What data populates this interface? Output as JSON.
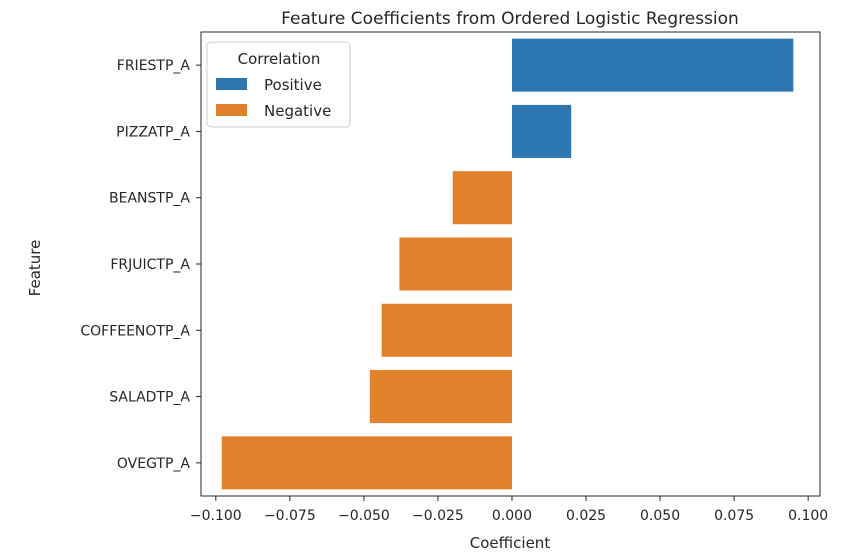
{
  "chart_data": {
    "type": "bar",
    "orientation": "horizontal",
    "title": "Feature Coefficients from Ordered Logistic Regression",
    "xlabel": "Coefficient",
    "ylabel": "Feature",
    "xlim": [
      -0.105,
      0.104
    ],
    "grid": false,
    "categories": [
      "FRIESTP_A",
      "PIZZATP_A",
      "BEANSTP_A",
      "FRJUICTP_A",
      "COFFEENOTP_A",
      "SALADTP_A",
      "OVEGTP_A"
    ],
    "values": [
      0.095,
      0.02,
      -0.02,
      -0.038,
      -0.044,
      -0.048,
      -0.098
    ],
    "correlation": [
      "Positive",
      "Positive",
      "Negative",
      "Negative",
      "Negative",
      "Negative",
      "Negative"
    ],
    "x_ticks": [
      -0.1,
      -0.075,
      -0.05,
      -0.025,
      0.0,
      0.025,
      0.05,
      0.075,
      0.1
    ],
    "x_tick_labels": [
      "−0.100",
      "−0.075",
      "−0.050",
      "−0.025",
      "0.000",
      "0.025",
      "0.050",
      "0.075",
      "0.100"
    ],
    "legend": {
      "title": "Correlation",
      "placement": "top-left",
      "entries": [
        {
          "name": "Positive",
          "color": "#2e77b0"
        },
        {
          "name": "Negative",
          "color": "#e1812c"
        }
      ]
    }
  }
}
